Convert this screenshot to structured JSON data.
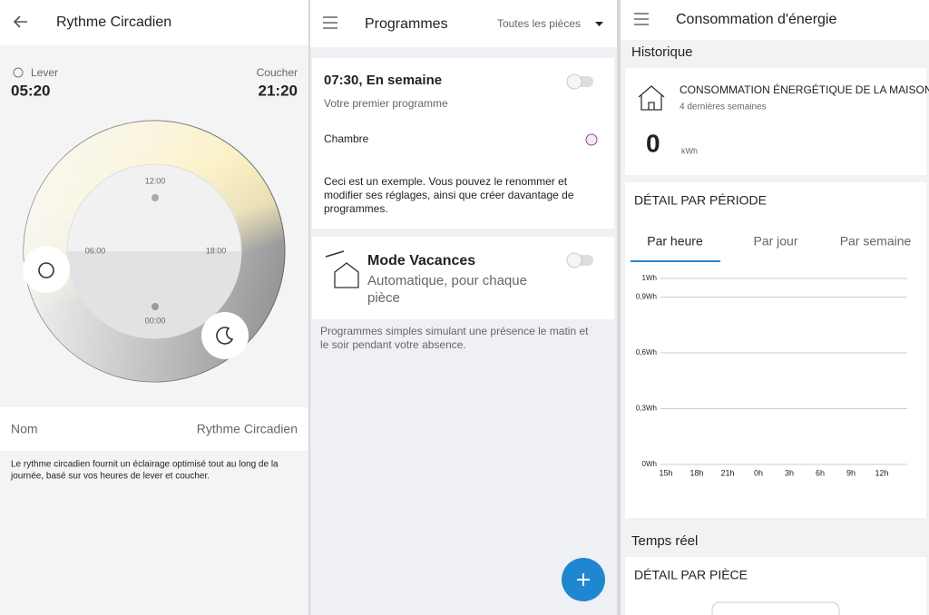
{
  "screens": [
    {
      "header": {
        "title": "Rythme Circadien"
      },
      "wake": {
        "label": "Lever",
        "time": "05:20"
      },
      "sleep": {
        "label": "Coucher",
        "time": "21:20"
      },
      "dial": {
        "top": "12:00",
        "left": "06:00",
        "right": "18:00",
        "bottom": "00:00"
      },
      "name_row": {
        "label": "Nom",
        "value": "Rythme Circadien"
      },
      "description": [
        "Le rythme circadien fournit un éclairage optimisé tout au long de la",
        "journée, basé sur vos heures de lever et coucher."
      ]
    },
    {
      "header": {
        "title": "Programmes",
        "filter": "Toutes les pièces"
      },
      "cards": [
        {
          "title": "07:30, En semaine",
          "subtitle": "Votre premier programme",
          "room": "Chambre",
          "description": [
            "Ceci est un exemple. Vous pouvez le renommer et",
            "modifier ses réglages, ainsi que créer davantage de",
            "programmes."
          ]
        },
        {
          "title": "Mode Vacances",
          "subtitle": [
            "Automatique, pour chaque",
            "pièce"
          ]
        }
      ],
      "footer_text": [
        "Programmes simples simulant une présence le matin et",
        "le soir pendant votre absence."
      ]
    },
    {
      "header": {
        "title": "Consommation d'énergie"
      },
      "history": {
        "section": "Historique",
        "card_title": "CONSOMMATION ÉNERGÉTIQUE DE LA MAISON",
        "period": "4 dernières semaines",
        "value": "0",
        "unit": "kWh"
      },
      "detail": {
        "title": "DÉTAIL PAR PÉRIODE",
        "tabs": [
          "Par heure",
          "Par jour",
          "Par semaine"
        ],
        "chart": {
          "ylim": [
            0,
            1
          ],
          "yticks": [
            {
              "value": 1,
              "label": "1Wh"
            },
            {
              "value": 0.9,
              "label": "0,9Wh"
            },
            {
              "value": 0.6,
              "label": "0,6Wh"
            },
            {
              "value": 0.3,
              "label": "0,3Wh"
            },
            {
              "value": 0,
              "label": "0Wh"
            }
          ],
          "categories": [
            "15h",
            "18h",
            "21h",
            "0h",
            "3h",
            "6h",
            "9h",
            "12h"
          ]
        }
      },
      "realtime": {
        "section": "Temps réel",
        "card_title": "DÉTAIL PAR PIÈCE"
      }
    }
  ]
}
